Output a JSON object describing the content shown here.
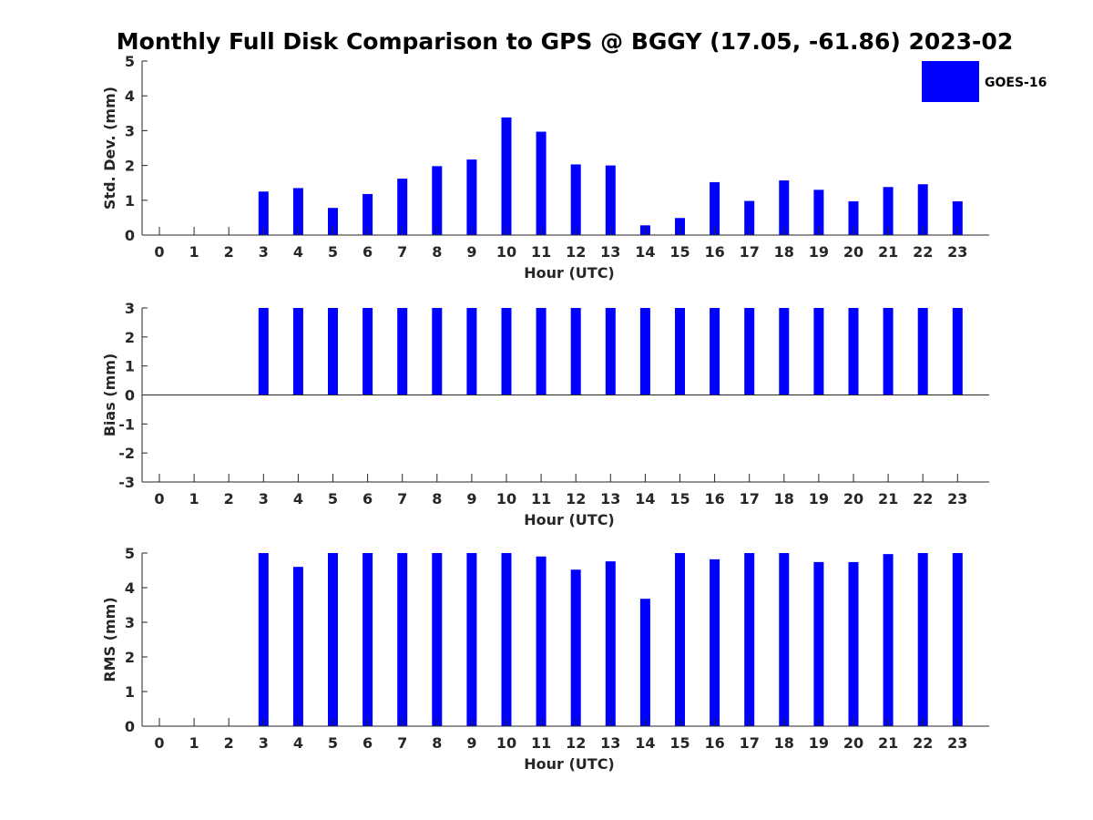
{
  "title": "Monthly Full Disk Comparison to GPS @ BGGY (17.05, -61.86) 2023-02",
  "legend": {
    "label": "GOES-16",
    "color": "#0000ff",
    "placement": "top-right"
  },
  "chart_data": [
    {
      "type": "bar",
      "name": "std-dev",
      "xlabel": "Hour (UTC)",
      "ylabel": "Std. Dev. (mm)",
      "ylim": [
        0,
        5
      ],
      "yticks": [
        0,
        1,
        2,
        3,
        4,
        5
      ],
      "categories": [
        "0",
        "1",
        "2",
        "3",
        "4",
        "5",
        "6",
        "7",
        "8",
        "9",
        "10",
        "11",
        "12",
        "13",
        "14",
        "15",
        "16",
        "17",
        "18",
        "19",
        "20",
        "21",
        "22",
        "23"
      ],
      "values": [
        null,
        null,
        null,
        1.25,
        1.35,
        0.78,
        1.18,
        1.62,
        1.98,
        2.17,
        3.38,
        2.97,
        2.03,
        2.0,
        0.28,
        0.49,
        1.52,
        0.98,
        1.57,
        1.3,
        0.97,
        1.38,
        1.46,
        0.97
      ],
      "color": "#0000ff"
    },
    {
      "type": "bar",
      "name": "bias",
      "xlabel": "Hour (UTC)",
      "ylabel": "Bias (mm)",
      "ylim": [
        -3,
        3
      ],
      "yticks": [
        -3,
        -2,
        -1,
        0,
        1,
        2,
        3
      ],
      "categories": [
        "0",
        "1",
        "2",
        "3",
        "4",
        "5",
        "6",
        "7",
        "8",
        "9",
        "10",
        "11",
        "12",
        "13",
        "14",
        "15",
        "16",
        "17",
        "18",
        "19",
        "20",
        "21",
        "22",
        "23"
      ],
      "values": [
        null,
        null,
        null,
        3,
        3,
        3,
        3,
        3,
        3,
        3,
        3,
        3,
        3,
        3,
        3,
        3,
        3,
        3,
        3,
        3,
        3,
        3,
        3,
        3
      ],
      "color": "#0000ff"
    },
    {
      "type": "bar",
      "name": "rms",
      "xlabel": "Hour (UTC)",
      "ylabel": "RMS (mm)",
      "ylim": [
        0,
        5
      ],
      "yticks": [
        0,
        1,
        2,
        3,
        4,
        5
      ],
      "categories": [
        "0",
        "1",
        "2",
        "3",
        "4",
        "5",
        "6",
        "7",
        "8",
        "9",
        "10",
        "11",
        "12",
        "13",
        "14",
        "15",
        "16",
        "17",
        "18",
        "19",
        "20",
        "21",
        "22",
        "23"
      ],
      "values": [
        null,
        null,
        null,
        5,
        4.6,
        5,
        5,
        5,
        5,
        5,
        5,
        4.9,
        4.52,
        4.76,
        3.68,
        5,
        4.82,
        5,
        5,
        4.74,
        4.74,
        4.97,
        5,
        5
      ],
      "color": "#0000ff"
    }
  ]
}
